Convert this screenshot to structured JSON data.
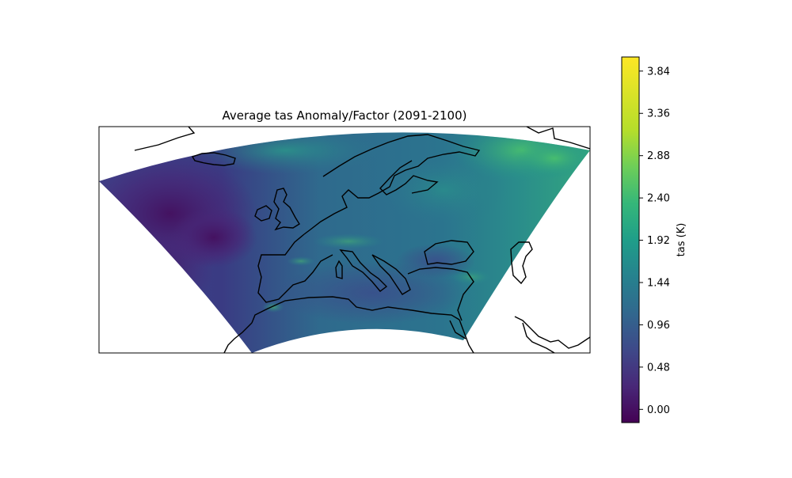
{
  "figure": {
    "title": "Average tas  Anomaly/Factor (2091-2100)"
  },
  "map": {
    "region": "Europe",
    "projection": "Lambert conformal",
    "coastlines": true,
    "field": "tas anomaly",
    "colormap": "viridis"
  },
  "colorbar": {
    "label": "tas (K)",
    "min": -0.15,
    "max": 4.0,
    "ticks": [
      "0.00",
      "0.48",
      "0.96",
      "1.44",
      "1.92",
      "2.40",
      "2.88",
      "3.36",
      "3.84"
    ],
    "tick_values": [
      0.0,
      0.48,
      0.96,
      1.44,
      1.92,
      2.4,
      2.88,
      3.36,
      3.84
    ]
  }
}
